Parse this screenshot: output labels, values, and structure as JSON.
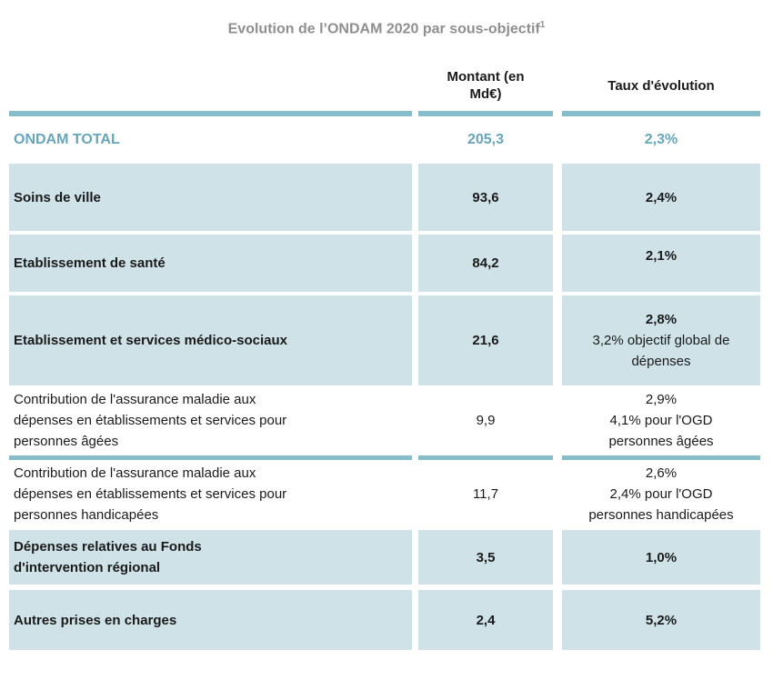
{
  "title": {
    "text": "Evolution de l’ONDAM 2020 par sous-objectif",
    "superscript": "1"
  },
  "colors": {
    "accent_rule_teal": "#87bdc9",
    "total_text_teal": "#67a6ba",
    "row_highlight_blue": "#cee2e8",
    "title_gray": "#8f8f8f",
    "body_text": "#1a1a1a"
  },
  "table": {
    "header": {
      "montant": "Montant (en\nMd€)",
      "taux": "Taux d'évolution"
    },
    "total": {
      "label": "ONDAM TOTAL",
      "montant": "205,3",
      "taux": "2,3%"
    },
    "rows": [
      {
        "label": "Soins de ville",
        "montant": "93,6",
        "taux": "2,4%",
        "highlight": true
      },
      {
        "label": "Etablissement de santé",
        "montant": "84,2",
        "taux": "2,1%",
        "highlight": true,
        "taux_align": "top"
      },
      {
        "label": "Etablissement et services médico-sociaux",
        "montant": "21,6",
        "taux": "2,8%",
        "taux_note": "3,2% objectif global de\ndépenses",
        "highlight": true
      },
      {
        "label": "Contribution de l'assurance maladie aux\ndépenses en établissements et services pour\npersonnes âgées",
        "montant": "9,9",
        "taux": "2,9%\n4,1% pour l'OGD\npersonnes âgées",
        "highlight": false,
        "rule_below": true
      },
      {
        "label": "Contribution de l'assurance maladie aux\ndépenses en établissements et services pour\npersonnes handicapées",
        "montant": "11,7",
        "taux": "2,6%\n2,4%  pour l'OGD\npersonnes handicapées",
        "highlight": false
      },
      {
        "label": "Dépenses relatives au Fonds\nd'intervention régional",
        "montant": "3,5",
        "taux": "1,0%",
        "highlight": true
      },
      {
        "label": "Autres prises en charges",
        "montant": "2,4",
        "taux": "5,2%",
        "highlight": true
      }
    ]
  }
}
